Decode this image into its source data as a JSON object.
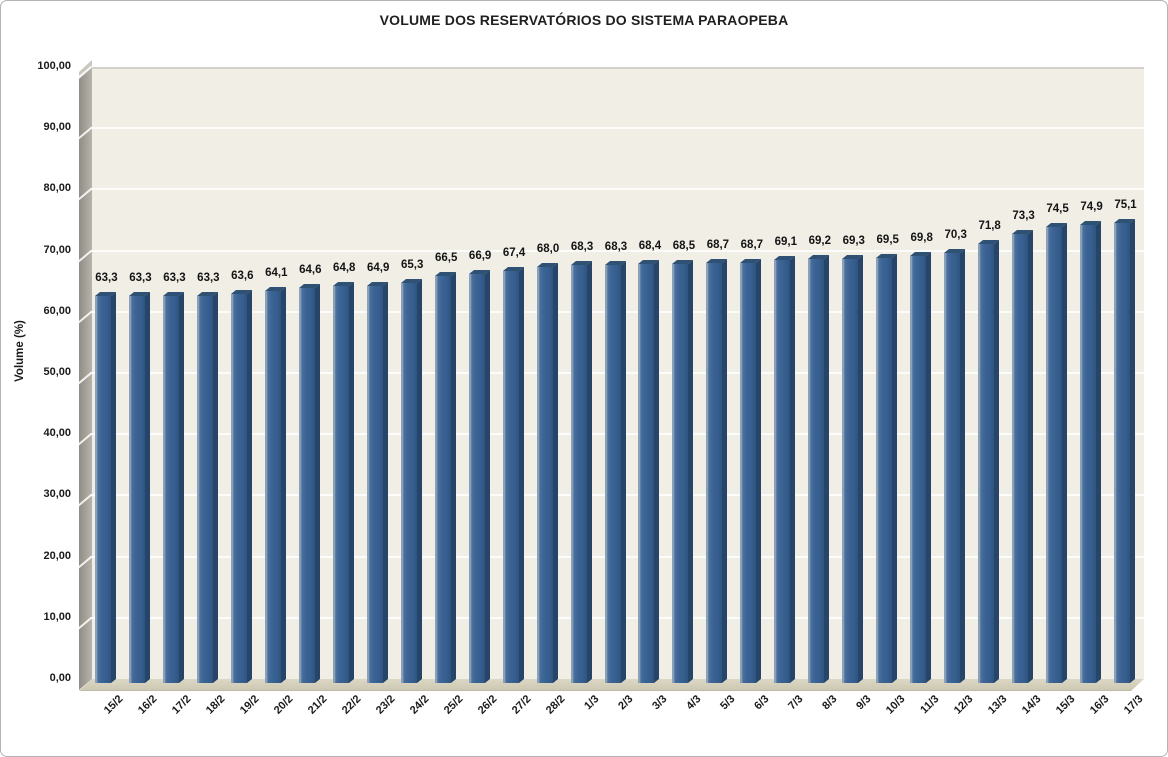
{
  "chart_data": {
    "type": "bar",
    "title": "VOLUME DOS RESERVATÓRIOS DO SISTEMA PARAOPEBA",
    "xlabel": "",
    "ylabel": "Volume (%)",
    "ylim": [
      0,
      100
    ],
    "grid": true,
    "legend": false,
    "style_3d": true,
    "decimal_separator": ",",
    "categories": [
      "15/2",
      "16/2",
      "17/2",
      "18/2",
      "19/2",
      "20/2",
      "21/2",
      "22/2",
      "23/2",
      "24/2",
      "25/2",
      "26/2",
      "27/2",
      "28/2",
      "1/3",
      "2/3",
      "3/3",
      "4/3",
      "5/3",
      "6/3",
      "7/3",
      "8/3",
      "9/3",
      "10/3",
      "11/3",
      "12/3",
      "13/3",
      "14/3",
      "15/3",
      "16/3",
      "17/3"
    ],
    "values": [
      63.3,
      63.3,
      63.3,
      63.3,
      63.6,
      64.1,
      64.6,
      64.8,
      64.9,
      65.3,
      66.5,
      66.9,
      67.4,
      68.0,
      68.3,
      68.3,
      68.4,
      68.5,
      68.7,
      68.7,
      69.1,
      69.2,
      69.3,
      69.5,
      69.8,
      70.3,
      71.8,
      73.3,
      74.5,
      74.9,
      75.1
    ],
    "value_labels": [
      "63,3",
      "63,3",
      "63,3",
      "63,3",
      "63,6",
      "64,1",
      "64,6",
      "64,8",
      "64,9",
      "65,3",
      "66,5",
      "66,9",
      "67,4",
      "68,0",
      "68,3",
      "68,3",
      "68,4",
      "68,5",
      "68,7",
      "68,7",
      "69,1",
      "69,2",
      "69,3",
      "69,5",
      "69,8",
      "70,3",
      "71,8",
      "73,3",
      "74,5",
      "74,9",
      "75,1"
    ],
    "ytick_values": [
      0,
      10,
      20,
      30,
      40,
      50,
      60,
      70,
      80,
      90,
      100
    ],
    "ytick_labels": [
      "0,00",
      "10,00",
      "20,00",
      "30,00",
      "40,00",
      "50,00",
      "60,00",
      "70,00",
      "80,00",
      "90,00",
      "100,00"
    ],
    "colors": {
      "bar_front": "#3a6394",
      "bar_side": "#264569",
      "bar_top": "#2e5174",
      "plot_background": "#f1eee6",
      "wall_gray": "#a3a099",
      "floor_tan": "#d4d0bc",
      "gridline": "#ffffff",
      "text": "#1a1a1a"
    }
  }
}
